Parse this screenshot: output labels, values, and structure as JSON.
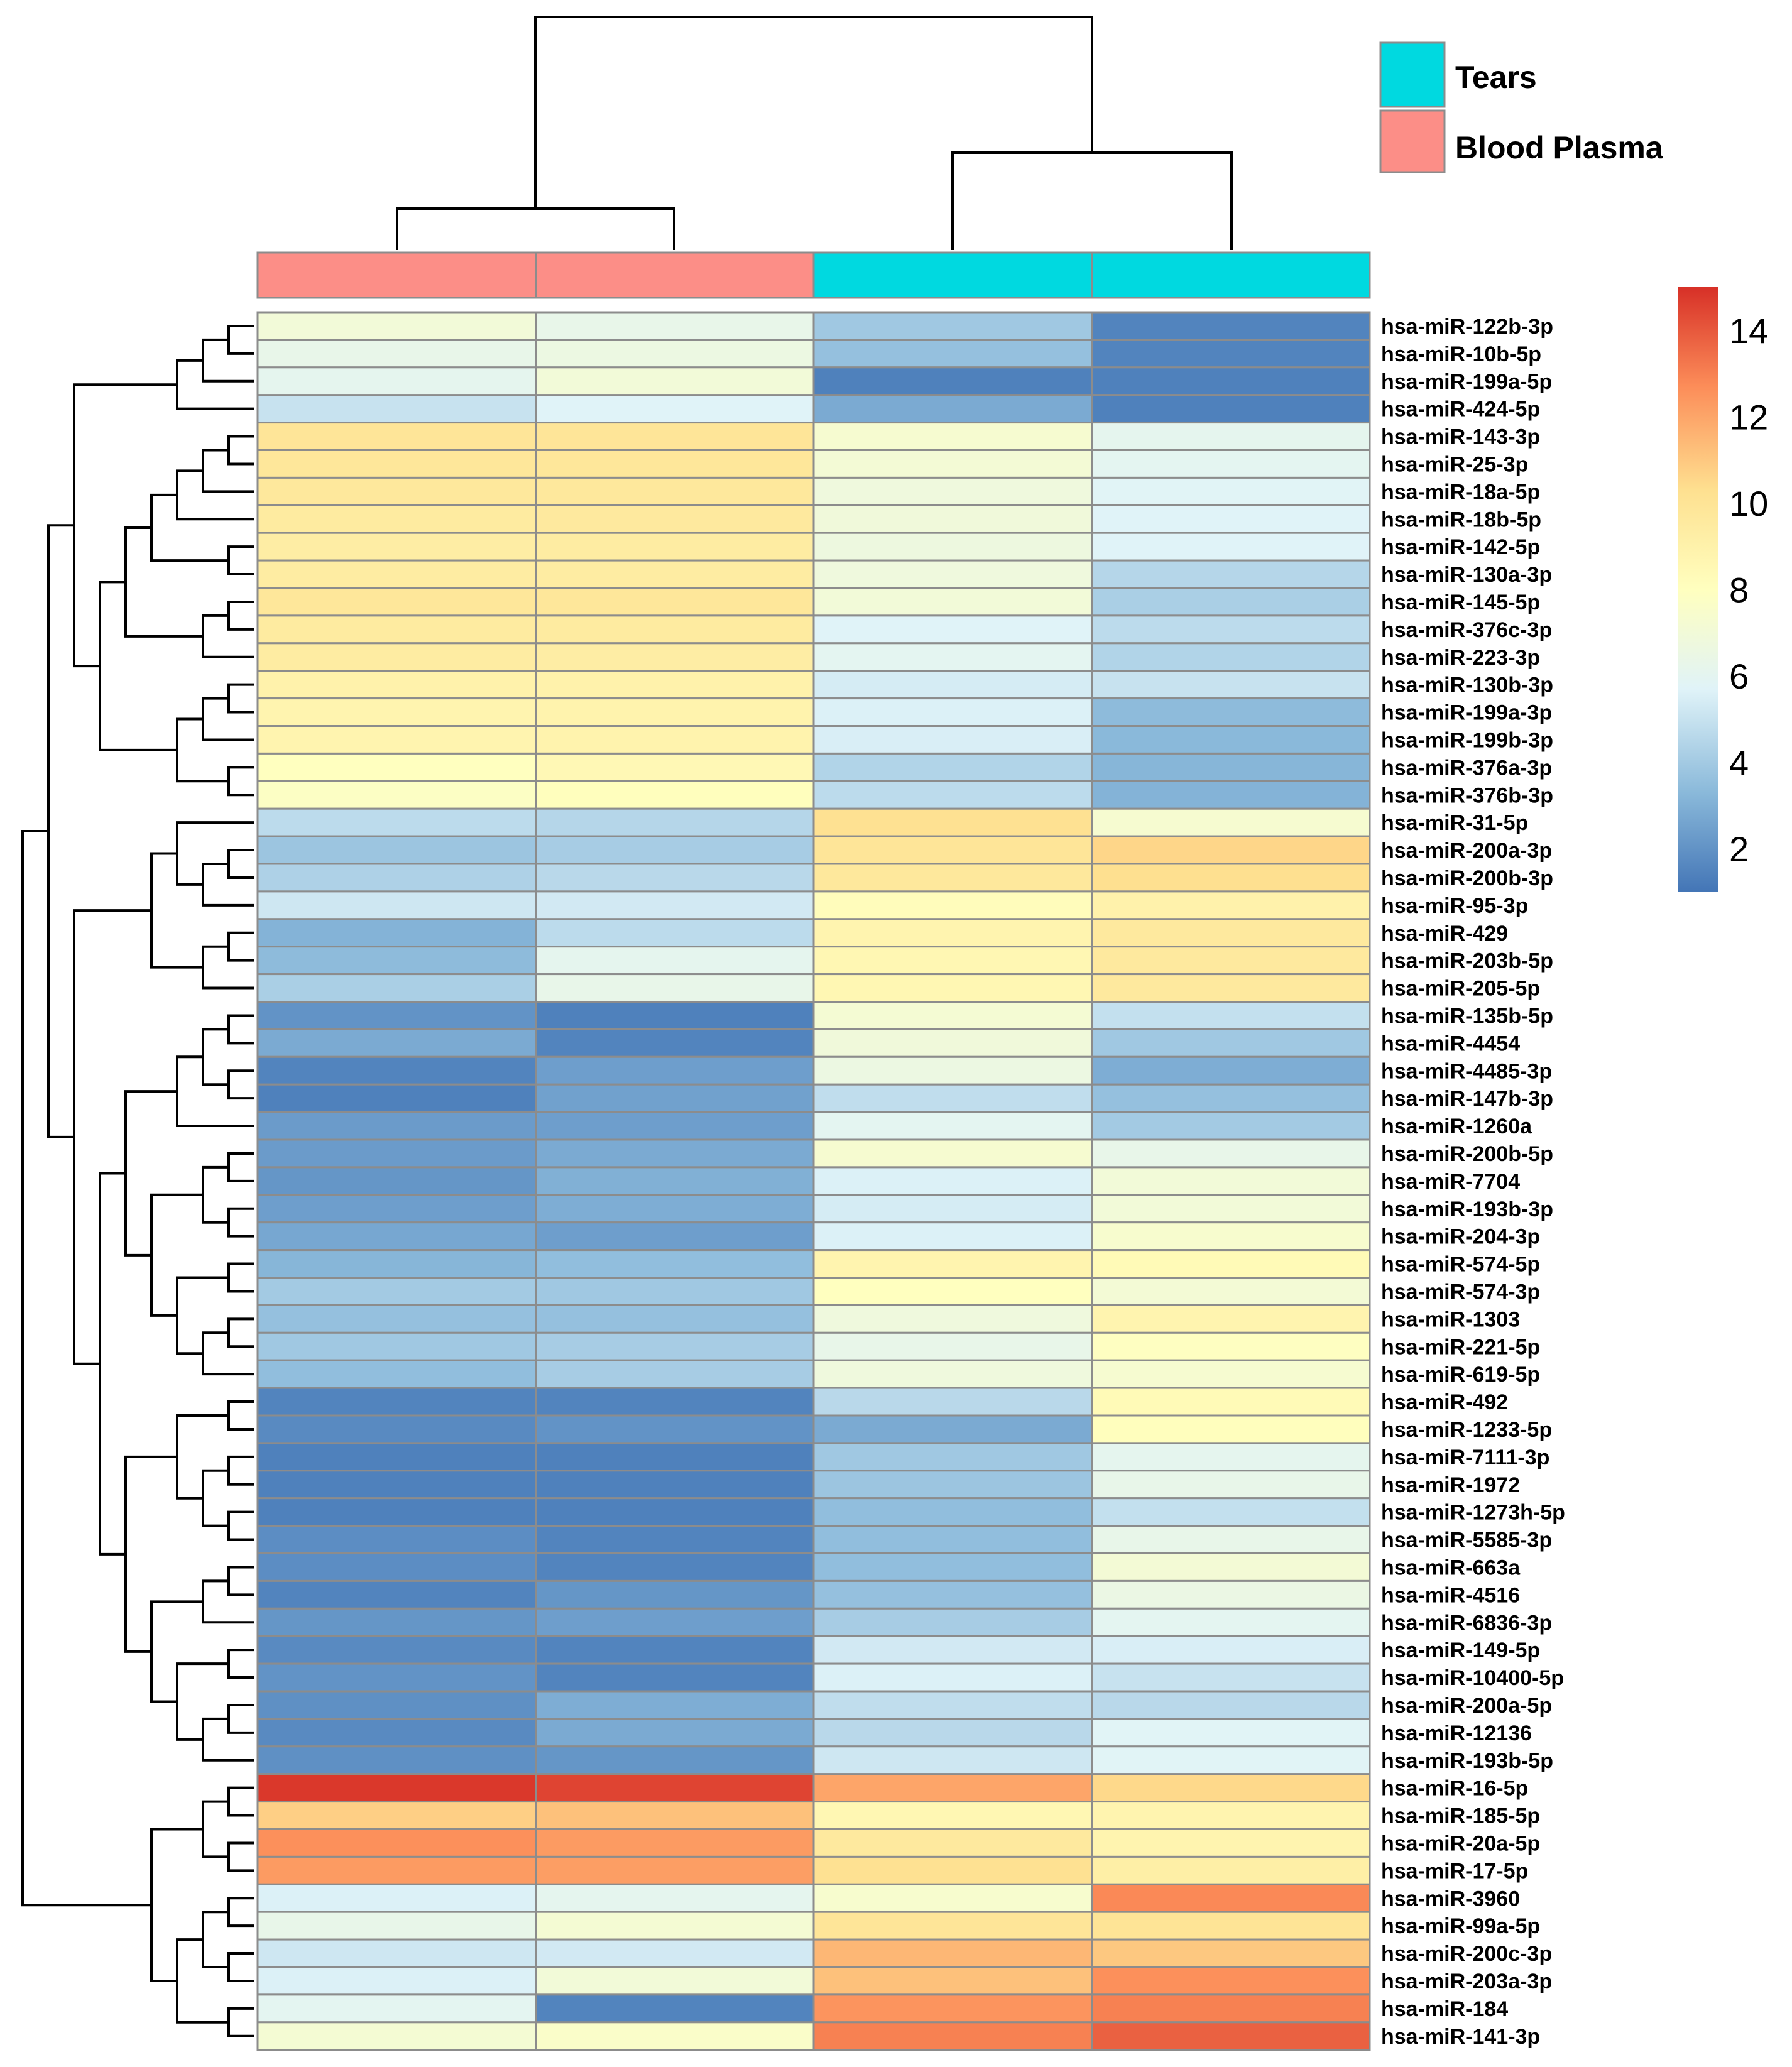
{
  "chart_data": {
    "type": "heatmap",
    "rows": [
      "hsa-miR-122b-3p",
      "hsa-miR-10b-5p",
      "hsa-miR-199a-5p",
      "hsa-miR-424-5p",
      "hsa-miR-143-3p",
      "hsa-miR-25-3p",
      "hsa-miR-18a-5p",
      "hsa-miR-18b-5p",
      "hsa-miR-142-5p",
      "hsa-miR-130a-3p",
      "hsa-miR-145-5p",
      "hsa-miR-376c-3p",
      "hsa-miR-223-3p",
      "hsa-miR-130b-3p",
      "hsa-miR-199a-3p",
      "hsa-miR-199b-3p",
      "hsa-miR-376a-3p",
      "hsa-miR-376b-3p",
      "hsa-miR-31-5p",
      "hsa-miR-200a-3p",
      "hsa-miR-200b-3p",
      "hsa-miR-95-3p",
      "hsa-miR-429",
      "hsa-miR-203b-5p",
      "hsa-miR-205-5p",
      "hsa-miR-135b-5p",
      "hsa-miR-4454",
      "hsa-miR-4485-3p",
      "hsa-miR-147b-3p",
      "hsa-miR-1260a",
      "hsa-miR-200b-5p",
      "hsa-miR-7704",
      "hsa-miR-193b-3p",
      "hsa-miR-204-3p",
      "hsa-miR-574-5p",
      "hsa-miR-574-3p",
      "hsa-miR-1303",
      "hsa-miR-221-5p",
      "hsa-miR-619-5p",
      "hsa-miR-492",
      "hsa-miR-1233-5p",
      "hsa-miR-7111-3p",
      "hsa-miR-1972",
      "hsa-miR-1273h-5p",
      "hsa-miR-5585-3p",
      "hsa-miR-663a",
      "hsa-miR-4516",
      "hsa-miR-6836-3p",
      "hsa-miR-149-5p",
      "hsa-miR-10400-5p",
      "hsa-miR-200a-5p",
      "hsa-miR-12136",
      "hsa-miR-193b-5p",
      "hsa-miR-16-5p",
      "hsa-miR-185-5p",
      "hsa-miR-20a-5p",
      "hsa-miR-17-5p",
      "hsa-miR-3960",
      "hsa-miR-99a-5p",
      "hsa-miR-200c-3p",
      "hsa-miR-203a-3p",
      "hsa-miR-184",
      "hsa-miR-141-3p"
    ],
    "columns": [
      "Blood Plasma",
      "Blood Plasma",
      "Tears",
      "Tears"
    ],
    "values": [
      [
        7.0,
        6.3,
        3.9,
        1.5
      ],
      [
        6.3,
        6.6,
        3.6,
        1.5
      ],
      [
        6.1,
        7.0,
        1.4,
        1.4
      ],
      [
        5.0,
        5.7,
        2.8,
        1.4
      ],
      [
        9.9,
        9.9,
        7.3,
        6.1
      ],
      [
        9.8,
        9.8,
        7.1,
        6.0
      ],
      [
        9.7,
        9.7,
        6.8,
        5.8
      ],
      [
        9.5,
        9.6,
        6.9,
        5.7
      ],
      [
        9.3,
        9.4,
        6.7,
        5.7
      ],
      [
        9.4,
        9.4,
        6.8,
        4.5
      ],
      [
        9.8,
        9.8,
        7.0,
        4.2
      ],
      [
        9.5,
        9.5,
        5.7,
        4.7
      ],
      [
        9.4,
        9.3,
        6.0,
        4.4
      ],
      [
        9.0,
        9.0,
        5.4,
        5.0
      ],
      [
        8.8,
        8.9,
        5.6,
        3.4
      ],
      [
        8.8,
        8.9,
        5.5,
        3.3
      ],
      [
        8.0,
        8.5,
        4.4,
        3.2
      ],
      [
        7.8,
        8.1,
        4.7,
        3.1
      ],
      [
        4.7,
        4.5,
        10.2,
        7.3
      ],
      [
        3.8,
        4.1,
        9.9,
        10.6
      ],
      [
        4.3,
        4.6,
        9.7,
        10.3
      ],
      [
        5.2,
        5.3,
        8.2,
        9.0
      ],
      [
        3.1,
        4.7,
        8.8,
        9.6
      ],
      [
        3.4,
        6.1,
        8.6,
        9.6
      ],
      [
        4.2,
        6.3,
        8.6,
        9.6
      ],
      [
        2.0,
        1.4,
        7.2,
        4.9
      ],
      [
        2.8,
        1.5,
        6.9,
        3.9
      ],
      [
        1.5,
        2.4,
        6.6,
        2.9
      ],
      [
        1.4,
        2.5,
        4.8,
        3.6
      ],
      [
        2.3,
        2.4,
        6.0,
        4.0
      ],
      [
        2.3,
        2.8,
        7.3,
        6.3
      ],
      [
        2.1,
        3.0,
        5.6,
        7.0
      ],
      [
        2.4,
        2.9,
        5.4,
        7.0
      ],
      [
        2.7,
        2.4,
        5.6,
        7.4
      ],
      [
        3.2,
        3.5,
        8.8,
        8.4
      ],
      [
        4.0,
        3.9,
        8.0,
        7.1
      ],
      [
        3.6,
        3.6,
        6.8,
        8.8
      ],
      [
        3.9,
        4.1,
        6.3,
        7.9
      ],
      [
        3.5,
        4.1,
        6.8,
        7.3
      ],
      [
        1.5,
        1.5,
        4.6,
        8.4
      ],
      [
        1.7,
        2.0,
        2.8,
        8.1
      ],
      [
        1.4,
        1.4,
        3.9,
        6.1
      ],
      [
        1.4,
        1.4,
        3.8,
        6.3
      ],
      [
        1.4,
        1.4,
        3.5,
        4.9
      ],
      [
        1.8,
        1.5,
        3.5,
        6.3
      ],
      [
        1.8,
        1.5,
        3.5,
        7.1
      ],
      [
        1.5,
        2.1,
        3.6,
        6.5
      ],
      [
        2.1,
        2.4,
        4.1,
        6.0
      ],
      [
        1.7,
        1.5,
        5.3,
        5.5
      ],
      [
        2.0,
        1.5,
        5.6,
        5.0
      ],
      [
        1.9,
        2.9,
        4.8,
        4.6
      ],
      [
        1.7,
        2.8,
        4.6,
        5.8
      ],
      [
        1.9,
        2.1,
        5.2,
        5.8
      ],
      [
        14.8,
        14.5,
        12.0,
        10.5
      ],
      [
        10.8,
        11.2,
        8.6,
        8.8
      ],
      [
        12.6,
        12.3,
        9.6,
        8.8
      ],
      [
        12.3,
        12.2,
        10.2,
        9.2
      ],
      [
        5.6,
        6.1,
        7.4,
        12.8
      ],
      [
        6.3,
        7.2,
        9.9,
        10.0
      ],
      [
        5.2,
        5.3,
        11.5,
        11.0
      ],
      [
        5.6,
        7.0,
        11.2,
        12.6
      ],
      [
        6.0,
        1.5,
        12.5,
        13.0
      ],
      [
        7.2,
        7.6,
        13.0,
        13.8
      ]
    ],
    "legend": [
      {
        "name": "Tears",
        "color": "#00d9e0"
      },
      {
        "name": "Blood Plasma",
        "color": "#fc8e87"
      }
    ],
    "colorbar": {
      "range": [
        1,
        15
      ],
      "ticks": [
        2,
        4,
        6,
        8,
        10,
        12,
        14
      ],
      "stops": [
        "#4375b6",
        "#8ab9da",
        "#e0f3f8",
        "#ffffbf",
        "#fee090",
        "#fc8d59",
        "#d73027"
      ]
    }
  }
}
